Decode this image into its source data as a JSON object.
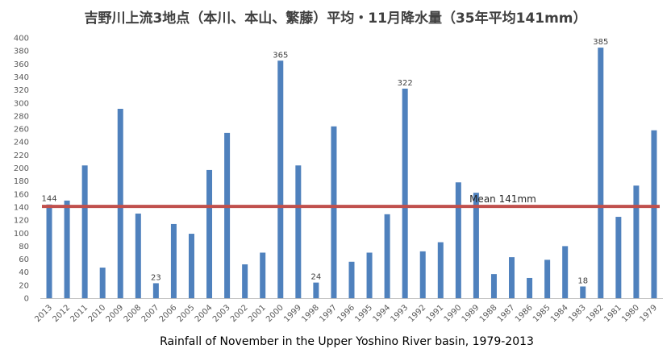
{
  "chart_data": {
    "type": "bar",
    "title": "吉野川上流3地点（本川、本山、繁藤）平均・11月降水量（35年平均141mm）",
    "subtitle": "Rainfall of November in the Upper Yoshino River basin, 1979-2013",
    "xlabel": "",
    "ylabel": "",
    "ylim": [
      0,
      400
    ],
    "yticks": [
      0,
      20,
      40,
      60,
      80,
      100,
      120,
      140,
      160,
      180,
      200,
      220,
      240,
      260,
      280,
      300,
      320,
      340,
      360,
      380,
      400
    ],
    "grid": false,
    "categories": [
      "2013",
      "2012",
      "2011",
      "2010",
      "2009",
      "2008",
      "2007",
      "2006",
      "2005",
      "2004",
      "2003",
      "2002",
      "2001",
      "2000",
      "1999",
      "1998",
      "1997",
      "1996",
      "1995",
      "1994",
      "1993",
      "1992",
      "1991",
      "1990",
      "1989",
      "1988",
      "1987",
      "1986",
      "1985",
      "1984",
      "1983",
      "1982",
      "1981",
      "1980",
      "1979"
    ],
    "values": [
      144,
      150,
      204,
      47,
      291,
      130,
      23,
      114,
      99,
      197,
      254,
      52,
      70,
      365,
      204,
      24,
      264,
      56,
      70,
      129,
      322,
      72,
      86,
      178,
      162,
      37,
      63,
      31,
      59,
      80,
      18,
      385,
      125,
      173,
      258
    ],
    "data_labels": {
      "0": "144",
      "6": "23",
      "13": "365",
      "15": "24",
      "20": "322",
      "30": "18",
      "31": "385"
    },
    "mean_line": {
      "value": 141,
      "label": "Mean 141mm",
      "color": "#c0504d"
    },
    "bar_color": "#4f81bd",
    "legend": "none"
  }
}
